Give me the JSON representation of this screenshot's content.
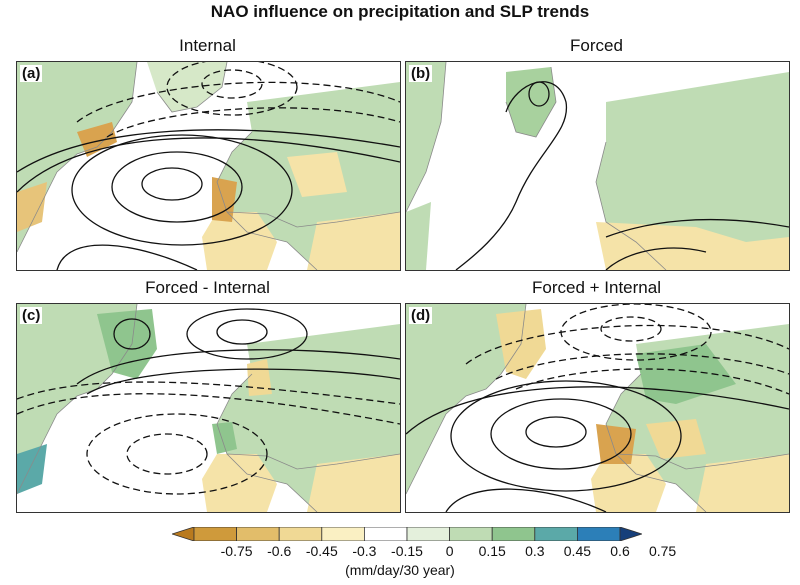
{
  "figure": {
    "title": "NAO influence on precipitation and SLP trends"
  },
  "panels": [
    {
      "letter": "(a)",
      "title": "Internal"
    },
    {
      "letter": "(b)",
      "title": "Forced"
    },
    {
      "letter": "(c)",
      "title": "Forced - Internal"
    },
    {
      "letter": "(d)",
      "title": "Forced + Internal"
    }
  ],
  "colorbar": {
    "tick_labels": [
      "-0.75",
      "-0.6",
      "-0.45",
      "-0.3",
      "-0.15",
      "0",
      "0.15",
      "0.3",
      "0.45",
      "0.6",
      "0.75"
    ],
    "colors": [
      "#b97a1e",
      "#cf9a3b",
      "#e2bd6a",
      "#f0d995",
      "#faf0c3",
      "#ffffff",
      "#e4f0dc",
      "#bfdcb4",
      "#8fc58e",
      "#5ba9a8",
      "#2c7fb8",
      "#163f7a"
    ],
    "units": "(mm/day/30 year)"
  },
  "colors": {
    "land_green": "#bfdcb4",
    "land_yellow": "#f5e3a8",
    "land_orange": "#d9a34f",
    "ocean": "#ffffff",
    "coast": "#8a8a8a",
    "contour": "#111111"
  }
}
